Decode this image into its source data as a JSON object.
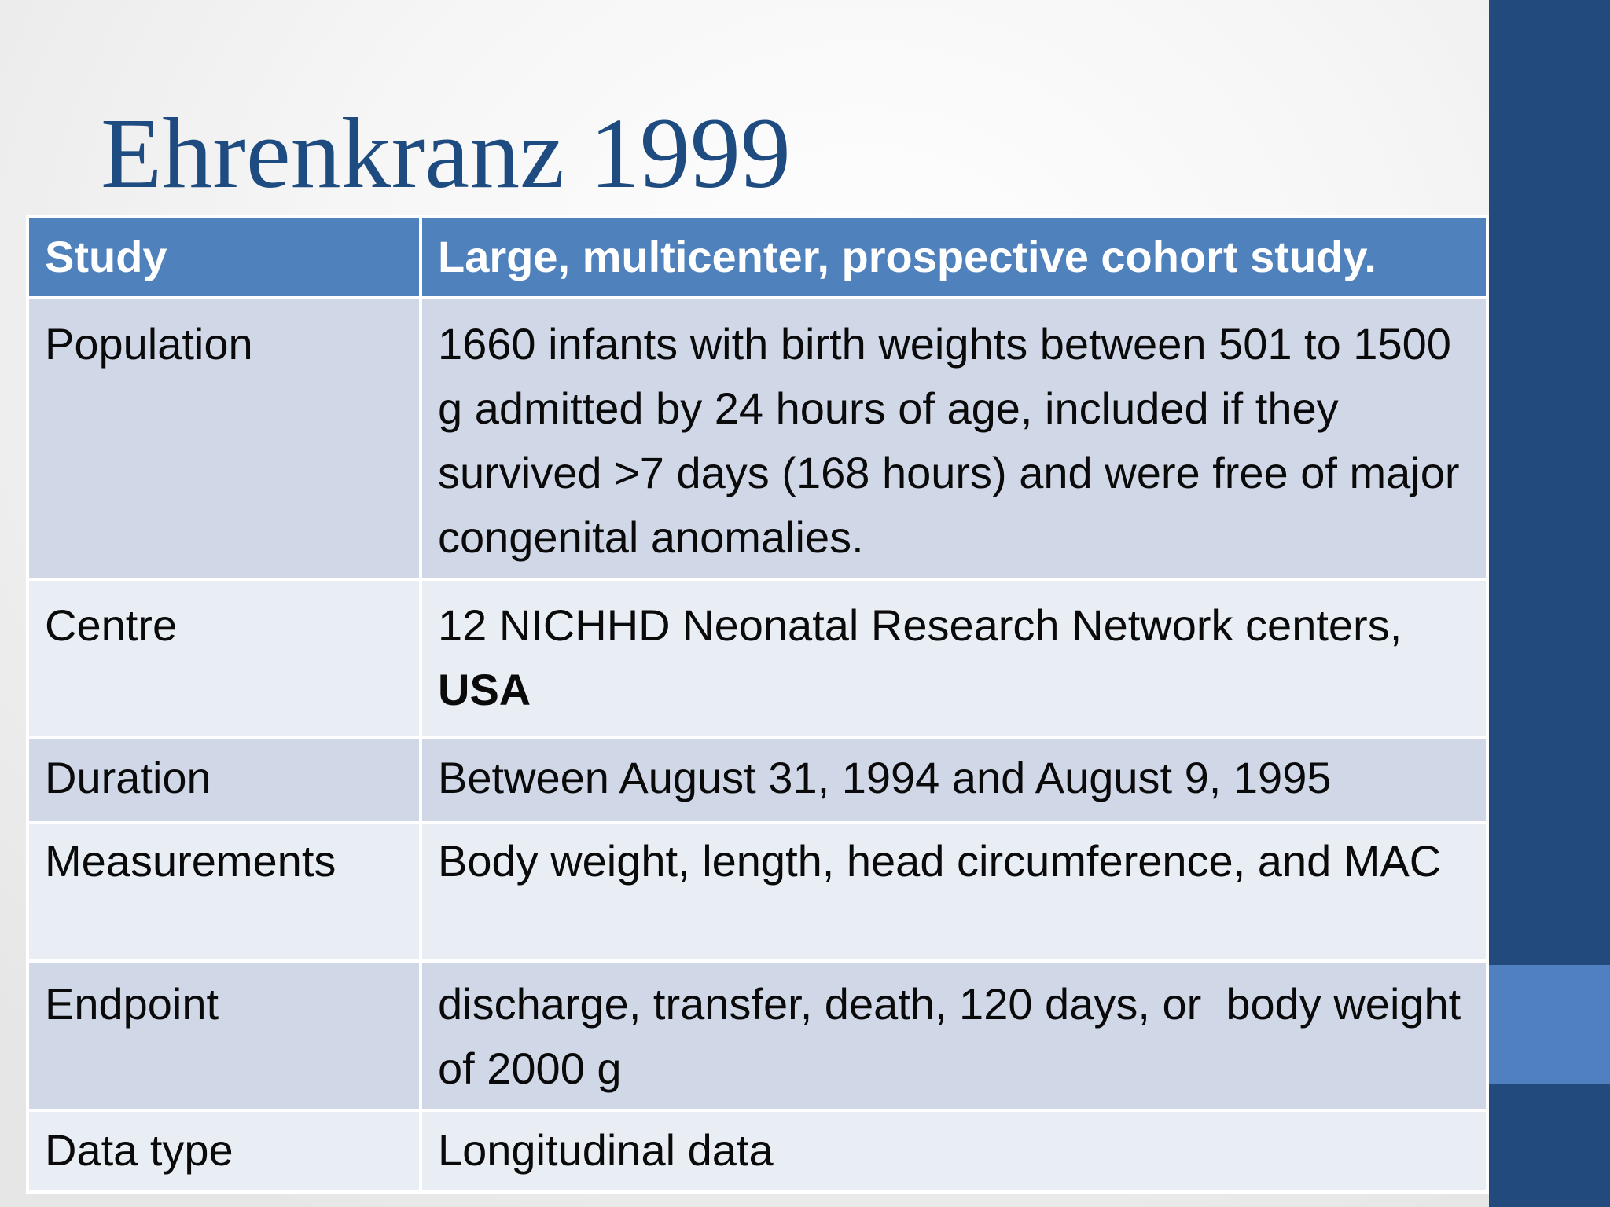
{
  "slide": {
    "title": "Ehrenkranz 1999",
    "colors": {
      "title": "#1e4c80",
      "header_bg": "#4f81bd",
      "row_dark": "#d0d8e8",
      "row_light": "#e9edf4",
      "side_bar": "#224a7c",
      "side_accent": "#5080bf"
    }
  },
  "table": {
    "header": {
      "label": "Study",
      "value": "Large, multicenter, prospective cohort study."
    },
    "rows": [
      {
        "label": "Population",
        "value": "1660 infants with birth weights between 501 to 1500 g admitted by 24 hours of age, included if they survived >7 days (168 hours) and were free of major congenital anomalies."
      },
      {
        "label": "Centre",
        "value_prefix": "12 NICHHD Neonatal Research Network centers, ",
        "value_bold": "USA"
      },
      {
        "label": "Duration",
        "value": "Between August 31, 1994 and August 9, 1995"
      },
      {
        "label": "Measurements",
        "value": "Body weight, length, head circumference, and MAC"
      },
      {
        "label": "Endpoint",
        "value": "discharge, transfer, death, 120 days, or  body weight of 2000 g"
      },
      {
        "label": "Data type",
        "value": "Longitudinal data"
      }
    ]
  }
}
